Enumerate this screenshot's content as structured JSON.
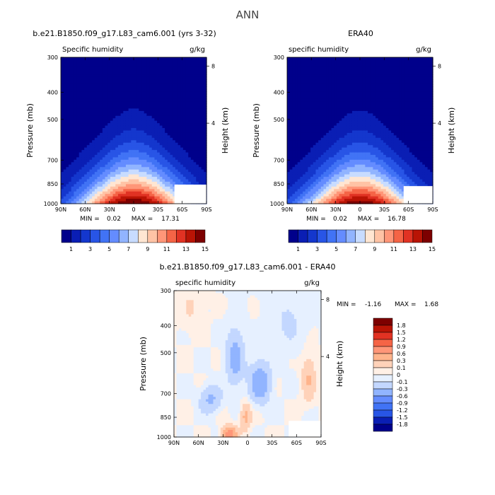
{
  "page_title": "ANN",
  "chart_data": [
    {
      "type": "heatmap",
      "panel": "top-left",
      "title": "b.e21.B1850.f09_g17.L83_cam6.001 (yrs 3-32)",
      "variable": "Specific humidity",
      "units": "g/kg",
      "ylabel": "Pressure (mb)",
      "ylabel_right": "Height (km)",
      "x_ticks": [
        "90N",
        "60N",
        "30N",
        "0",
        "30S",
        "60S",
        "90S"
      ],
      "y_ticks": [
        300,
        400,
        500,
        700,
        850,
        1000
      ],
      "height_ticks": [
        8,
        4
      ],
      "ylim": [
        1000,
        300
      ],
      "stats": {
        "min_label": "MIN =",
        "min": "0.02",
        "max_label": "MAX =",
        "max": "17.31"
      },
      "peak_value": 17.31,
      "peak_lat": 0,
      "colorbar": {
        "labels": [
          "1",
          "3",
          "5",
          "7",
          "9",
          "11",
          "13",
          "15"
        ],
        "colors": [
          "#00008b",
          "#0a1eb4",
          "#1437cd",
          "#2855e6",
          "#4173f5",
          "#648cff",
          "#91b4ff",
          "#c8dcff",
          "#ffe6d2",
          "#ffc3a5",
          "#ff9678",
          "#f56446",
          "#e13223",
          "#b91405",
          "#7d0000"
        ]
      }
    },
    {
      "type": "heatmap",
      "panel": "top-right",
      "title": "ERA40",
      "variable": "specific humidity",
      "units": "g/kg",
      "ylabel": "Pressure (mb)",
      "ylabel_right": "Height (km)",
      "x_ticks": [
        "90N",
        "60N",
        "30N",
        "0",
        "30S",
        "60S",
        "90S"
      ],
      "y_ticks": [
        300,
        400,
        500,
        700,
        850,
        1000
      ],
      "height_ticks": [
        8,
        4
      ],
      "ylim": [
        1000,
        300
      ],
      "stats": {
        "min_label": "MIN =",
        "min": "0.02",
        "max_label": "MAX =",
        "max": "16.78"
      },
      "peak_value": 16.78,
      "peak_lat": 0,
      "colorbar": {
        "labels": [
          "1",
          "3",
          "5",
          "7",
          "9",
          "11",
          "13",
          "15"
        ],
        "colors": [
          "#00008b",
          "#0a1eb4",
          "#1437cd",
          "#2855e6",
          "#4173f5",
          "#648cff",
          "#91b4ff",
          "#c8dcff",
          "#ffe6d2",
          "#ffc3a5",
          "#ff9678",
          "#f56446",
          "#e13223",
          "#b91405",
          "#7d0000"
        ]
      }
    },
    {
      "type": "heatmap",
      "panel": "bottom",
      "title": "b.e21.B1850.f09_g17.L83_cam6.001 - ERA40",
      "variable": "specific humidity",
      "units": "g/kg",
      "ylabel": "Pressure (mb)",
      "ylabel_right": "Height (km)",
      "x_ticks": [
        "90N",
        "60N",
        "30N",
        "0",
        "30S",
        "60S",
        "90S"
      ],
      "y_ticks": [
        300,
        400,
        500,
        700,
        850,
        1000
      ],
      "height_ticks": [
        8,
        4
      ],
      "ylim": [
        1000,
        300
      ],
      "stats": {
        "min_label": "MIN =",
        "min": "-1.16",
        "max_label": "MAX =",
        "max": "1.68"
      },
      "colorbar": {
        "labels": [
          "1.8",
          "1.5",
          "1.2",
          "0.9",
          "0.6",
          "0.3",
          "0.1",
          "0",
          "-0.1",
          "-0.3",
          "-0.6",
          "-0.9",
          "-1.2",
          "-1.5",
          "-1.8"
        ],
        "colors": [
          "#7d0000",
          "#b91405",
          "#e13223",
          "#f56446",
          "#ff9678",
          "#ffb48c",
          "#ffd2b9",
          "#fff0e6",
          "#e6f0ff",
          "#c3d7ff",
          "#91b4ff",
          "#648cff",
          "#4173f5",
          "#2855e6",
          "#0a1eb4",
          "#00008b"
        ]
      }
    }
  ]
}
